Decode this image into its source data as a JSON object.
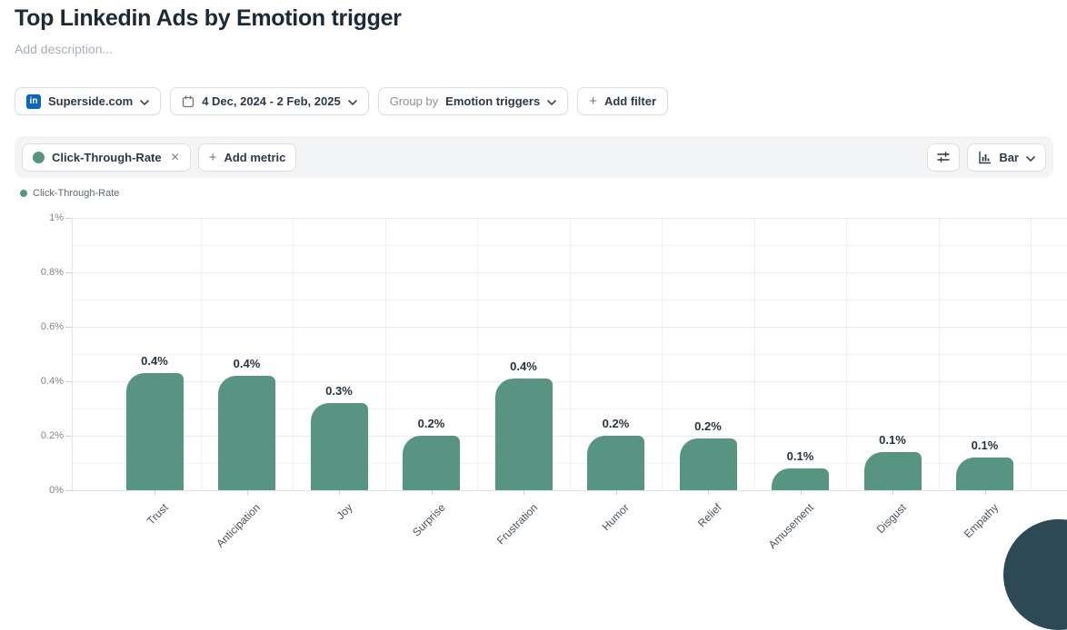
{
  "page": {
    "title": "Top Linkedin Ads by Emotion trigger",
    "description_placeholder": "Add description..."
  },
  "filters": {
    "account": {
      "label": "Superside.com",
      "icon_text": "in",
      "brand_color": "#0a66c2"
    },
    "date_range": {
      "label": "4 Dec, 2024 - 2 Feb, 2025"
    },
    "group_by": {
      "prefix": "Group by",
      "value": "Emotion triggers"
    },
    "add_filter": {
      "plus": "+",
      "label": "Add filter"
    }
  },
  "metrics_toolbar": {
    "metric_chip": {
      "label": "Click-Through-Rate",
      "remove": "✕",
      "color": "#579482"
    },
    "add_metric": {
      "plus": "+",
      "label": "Add metric"
    },
    "chart_type": {
      "label": "Bar"
    }
  },
  "legend": {
    "label": "Click-Through-Rate",
    "color": "#579482"
  },
  "chart_data": {
    "type": "bar",
    "title": "Top Linkedin Ads by Emotion trigger",
    "series_name": "Click-Through-Rate",
    "categories": [
      "Trust",
      "Anticipation",
      "Joy",
      "Surprise",
      "Frustration",
      "Humor",
      "Relief",
      "Amusement",
      "Disgust",
      "Empathy"
    ],
    "values": [
      0.43,
      0.42,
      0.32,
      0.2,
      0.41,
      0.2,
      0.19,
      0.08,
      0.14,
      0.12
    ],
    "data_labels": [
      "0.4%",
      "0.4%",
      "0.3%",
      "0.2%",
      "0.4%",
      "0.2%",
      "0.2%",
      "0.1%",
      "0.1%",
      "0.1%"
    ],
    "unit": "%",
    "ylim": [
      0,
      1
    ],
    "y_ticks": [
      "0%",
      "0.2%",
      "0.4%",
      "0.6%",
      "0.8%",
      "1%"
    ],
    "bar_color": "#579482",
    "grid": true,
    "legend_position": "top-left",
    "xlabel": "",
    "ylabel": ""
  }
}
